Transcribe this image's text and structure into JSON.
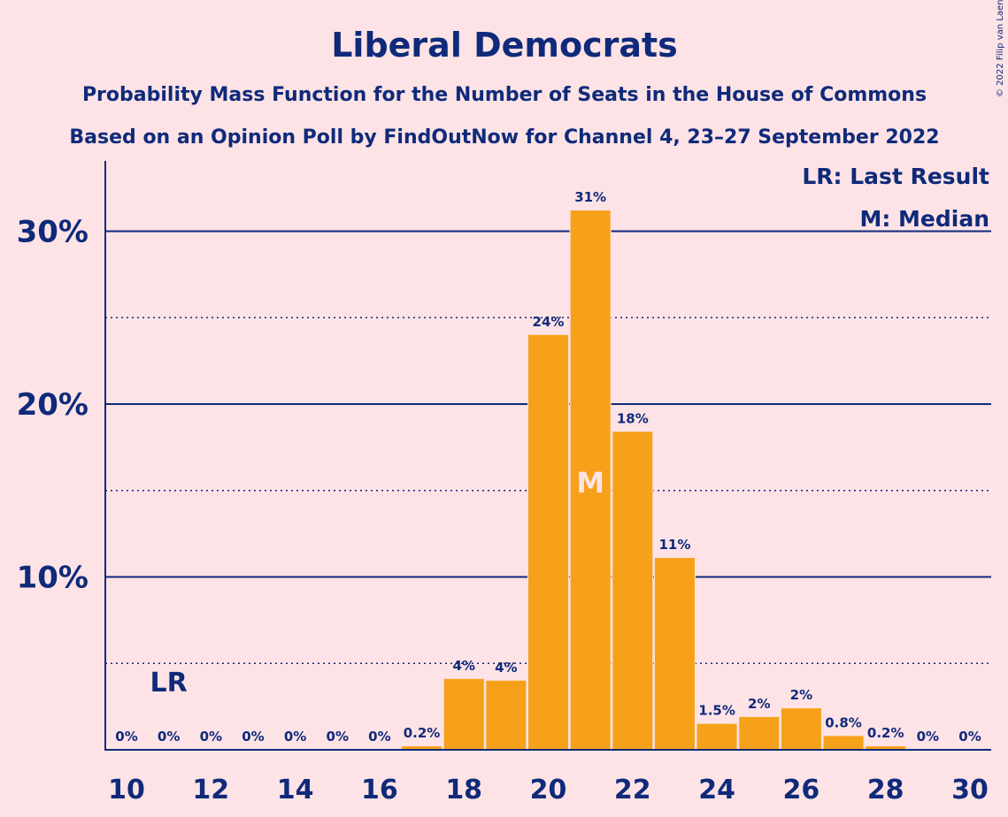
{
  "colors": {
    "background": "#fde3e6",
    "bar": "#f7a11a",
    "text": "#0f2a7a",
    "axis": "#0f2a7a"
  },
  "copyright": "© 2022 Filip van Laenen",
  "chart_data": {
    "type": "bar",
    "title": "Liberal Democrats",
    "subtitle_lines": [
      "Probability Mass Function for the Number of Seats in the House of Commons",
      "Based on an Opinion Poll by FindOutNow for Channel 4, 23–27 September 2022"
    ],
    "x": [
      10,
      11,
      12,
      13,
      14,
      15,
      16,
      17,
      18,
      19,
      20,
      21,
      22,
      23,
      24,
      25,
      26,
      27,
      28,
      29,
      30
    ],
    "values": [
      0,
      0,
      0,
      0,
      0,
      0,
      0,
      0.2,
      4.1,
      4.0,
      24.0,
      31.2,
      18.4,
      11.1,
      1.5,
      1.9,
      2.4,
      0.8,
      0.2,
      0,
      0
    ],
    "data_labels": [
      "0%",
      "0%",
      "0%",
      "0%",
      "0%",
      "0%",
      "0%",
      "0.2%",
      "4%",
      "4%",
      "24%",
      "31%",
      "18%",
      "11%",
      "1.5%",
      "2%",
      "2%",
      "0.8%",
      "0.2%",
      "0%",
      "0%"
    ],
    "x_tick_labels": [
      "10",
      "12",
      "14",
      "16",
      "18",
      "20",
      "22",
      "24",
      "26",
      "28",
      "30"
    ],
    "y_ticks": [
      10,
      20,
      30
    ],
    "y_tick_labels": [
      "10%",
      "20%",
      "30%"
    ],
    "y_minor_ticks": [
      5,
      15,
      25
    ],
    "ylim": [
      0,
      34
    ],
    "last_result": {
      "x": 11,
      "label": "LR"
    },
    "median": {
      "x": 21,
      "label": "M"
    },
    "legend": [
      "LR: Last Result",
      "M: Median"
    ],
    "legend_position": "top-right"
  }
}
